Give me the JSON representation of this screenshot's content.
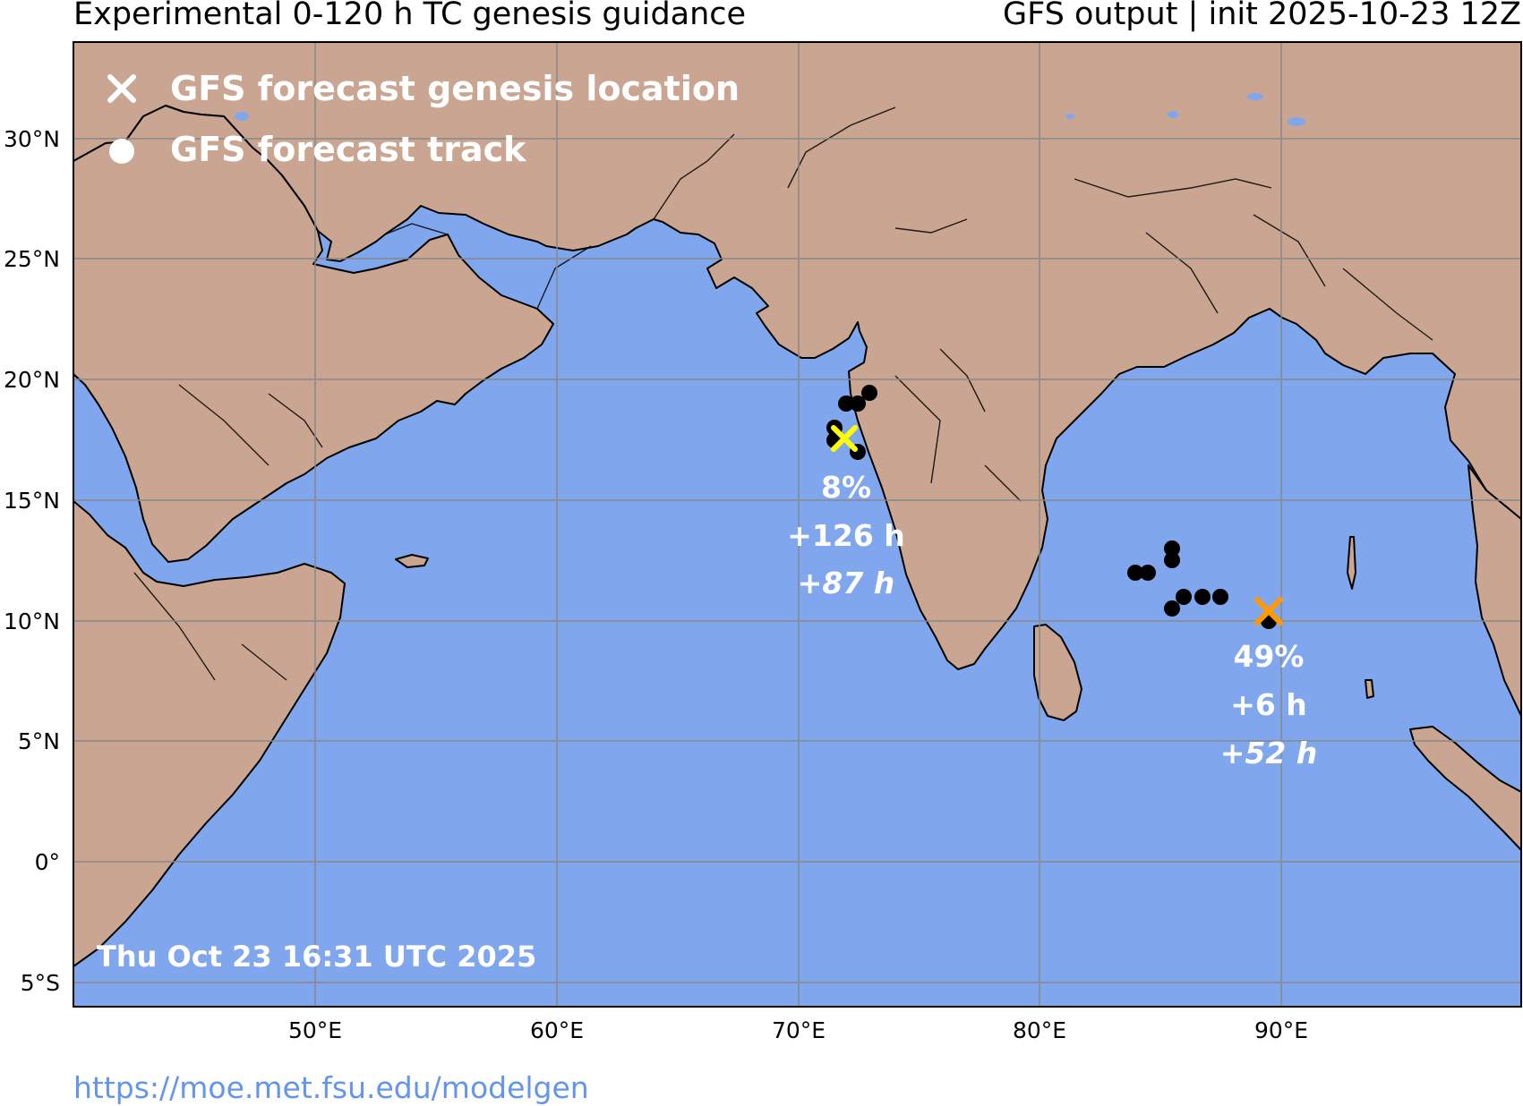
{
  "header": {
    "title_left": "Experimental 0-120 h TC genesis guidance",
    "title_right": "GFS output | init 2025-10-23 12Z"
  },
  "map": {
    "region": "North Indian Ocean",
    "colors": {
      "ocean": "#80a6ee",
      "land": "#c9a592",
      "border": "#000000",
      "grid": "#888888"
    },
    "lon_ticks": [
      "50°E",
      "60°E",
      "70°E",
      "80°E",
      "90°E"
    ],
    "lat_ticks": [
      "30°N",
      "25°N",
      "20°N",
      "15°N",
      "10°N",
      "5°N",
      "0°",
      "5°S"
    ]
  },
  "legend": {
    "genesis_label": "GFS forecast genesis location",
    "track_label": "GFS forecast track",
    "genesis_icon": "x-mark-icon",
    "track_icon": "filled-circle-icon"
  },
  "systems": [
    {
      "id": "arabian-sea",
      "marker_color": "#ffff00",
      "probability": "8%",
      "lead_time": "+126 h",
      "genesis_time": "+87 h"
    },
    {
      "id": "bay-of-bengal",
      "marker_color": "#ff9900",
      "probability": "49%",
      "lead_time": "+6 h",
      "genesis_time": "+52 h"
    }
  ],
  "timestamp": "Thu Oct 23 16:31 UTC 2025",
  "footer": {
    "url": "https://moe.met.fsu.edu/modelgen"
  }
}
